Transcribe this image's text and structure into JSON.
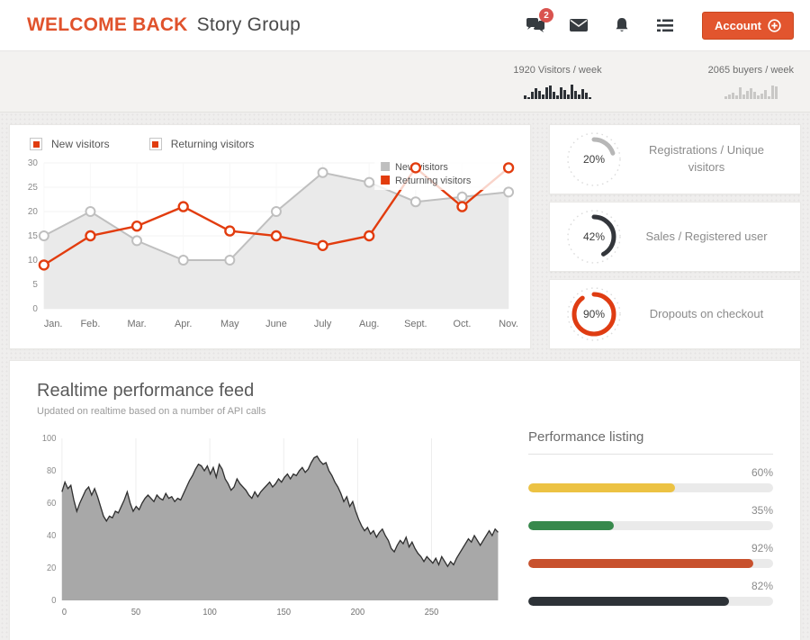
{
  "header": {
    "title_highlight": "WELCOME BACK",
    "title_company": "Story Group",
    "badge": "2",
    "account_label": "Account",
    "accent_color": "#e0522c"
  },
  "legend_toggles": [
    {
      "label": "New visitors"
    },
    {
      "label": "Returning visitors"
    }
  ],
  "gauges": [
    {
      "value": "20%",
      "pct": 20,
      "color": "#b7b7b7",
      "label": "Registrations / Unique visitors"
    },
    {
      "value": "42%",
      "pct": 42,
      "color": "#33363b",
      "label": "Sales / Registered user"
    },
    {
      "value": "90%",
      "pct": 90,
      "color": "#df3c12",
      "label": "Dropouts on checkout"
    }
  ],
  "realtime": {
    "title": "Realtime performance feed",
    "subtitle": "Updated on realtime based on a number of API calls"
  },
  "performance_listing": {
    "title": "Performance listing",
    "items": [
      {
        "value": "60%",
        "pct": 60,
        "color": "#ecc243"
      },
      {
        "value": "35%",
        "pct": 35,
        "color": "#37894c"
      },
      {
        "value": "92%",
        "pct": 92,
        "color": "#c8512d"
      },
      {
        "value": "82%",
        "pct": 82,
        "color": "#2d3237"
      }
    ]
  },
  "chart_data": [
    {
      "id": "visitors_per_week",
      "type": "bar",
      "title": "1920 Visitors / week",
      "color": "#2d3136",
      "values": [
        4,
        2,
        8,
        12,
        9,
        5,
        13,
        15,
        8,
        4,
        13,
        10,
        5,
        16,
        9,
        5,
        11,
        7,
        2
      ]
    },
    {
      "id": "buyers_per_week",
      "type": "bar",
      "title": "2065 buyers / week",
      "color": "#c9c8c6",
      "values": [
        3,
        5,
        7,
        4,
        13,
        5,
        9,
        12,
        8,
        4,
        6,
        10,
        3,
        15,
        14
      ]
    },
    {
      "id": "visitors_by_month",
      "type": "line",
      "categories": [
        "Jan.",
        "Feb.",
        "Mar.",
        "Apr.",
        "May",
        "June",
        "July",
        "Aug.",
        "Sept.",
        "Oct.",
        "Nov."
      ],
      "ylim": [
        0,
        30
      ],
      "ytick_step": 5,
      "grid": true,
      "legend_position": "inset-top-right",
      "series": [
        {
          "name": "New visitors",
          "color": "#bfbfbf",
          "fill": "#eaeaea",
          "values": [
            15,
            20,
            14,
            10,
            10,
            20,
            28,
            26,
            22,
            23,
            24
          ]
        },
        {
          "name": "Returning visitors",
          "color": "#e23c0e",
          "fill": null,
          "values": [
            9,
            15,
            17,
            21,
            16,
            15,
            13,
            15,
            29,
            21,
            29
          ]
        }
      ]
    },
    {
      "id": "realtime_feed",
      "type": "area",
      "xlim": [
        0,
        295
      ],
      "xticks": [
        0,
        50,
        100,
        150,
        200,
        250
      ],
      "ylim": [
        0,
        100
      ],
      "yticks": [
        0,
        20,
        40,
        60,
        80,
        100
      ],
      "line_color": "#303030",
      "fill_color": "#a8a8a8",
      "values": [
        67,
        73,
        69,
        71,
        62,
        55,
        60,
        64,
        68,
        70,
        65,
        69,
        64,
        58,
        52,
        49,
        52,
        51,
        55,
        54,
        58,
        62,
        67,
        60,
        55,
        58,
        56,
        60,
        63,
        65,
        63,
        61,
        65,
        63,
        62,
        66,
        63,
        64,
        61,
        63,
        62,
        66,
        70,
        74,
        77,
        81,
        84,
        83,
        80,
        83,
        78,
        82,
        76,
        84,
        81,
        75,
        72,
        68,
        70,
        75,
        72,
        70,
        68,
        65,
        63,
        67,
        64,
        67,
        69,
        71,
        73,
        70,
        72,
        75,
        73,
        76,
        78,
        75,
        78,
        77,
        80,
        82,
        79,
        81,
        85,
        88,
        89,
        86,
        84,
        85,
        80,
        77,
        73,
        70,
        66,
        61,
        64,
        58,
        61,
        55,
        50,
        46,
        43,
        45,
        41,
        43,
        39,
        42,
        44,
        40,
        37,
        32,
        30,
        34,
        37,
        35,
        39,
        33,
        36,
        32,
        29,
        27,
        24,
        27,
        25,
        23,
        26,
        22,
        27,
        24,
        21,
        24,
        22,
        26,
        29,
        32,
        35,
        38,
        36,
        40,
        37,
        34,
        37,
        40,
        43,
        40,
        44,
        42
      ]
    }
  ]
}
